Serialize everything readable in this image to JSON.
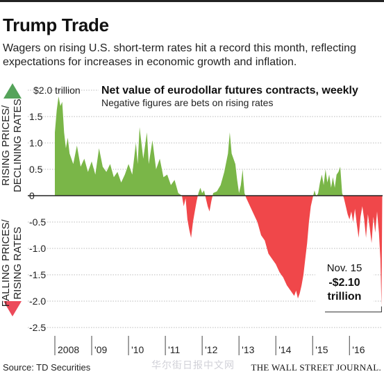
{
  "header": {
    "title": "Trump Trade",
    "subtitle": "Wagers on rising U.S. short-term rates hit a record this month, reflecting expectations for increases in economic growth and inflation."
  },
  "footer": {
    "source": "Source: TD Securities",
    "publisher": "THE WALL STREET JOURNAL.",
    "watermark": "华尔街日报中文网"
  },
  "colors": {
    "positive": "#7ab648",
    "negative": "#f0474a",
    "positive_arrow": "#55a35a",
    "negative_arrow": "#ec4a5a"
  },
  "chart_data": {
    "type": "area",
    "title": "Net value of eurodollar futures contracts, weekly",
    "subtitle": "Negative figures are bets on rising rates",
    "ylabel_positive": "RISING PRICES/ DECLINING RATES",
    "ylabel_negative": "FALLING PRICES/ RISING RATES",
    "ylim": [
      -2.5,
      2.0
    ],
    "y_ticks": [
      {
        "value": 2.0,
        "label": "$2.0 trillion"
      },
      {
        "value": 1.5,
        "label": "1.5"
      },
      {
        "value": 1.0,
        "label": "1.0"
      },
      {
        "value": 0.5,
        "label": "0.5"
      },
      {
        "value": 0,
        "label": "0"
      },
      {
        "value": -0.5,
        "label": "-0.5"
      },
      {
        "value": -1.0,
        "label": "-1.0"
      },
      {
        "value": -1.5,
        "label": "-1.5"
      },
      {
        "value": -2.0,
        "label": "-2.0"
      },
      {
        "value": -2.5,
        "label": "-2.5"
      }
    ],
    "x_range": [
      2008.0,
      2016.9
    ],
    "x_ticks": [
      {
        "value": 2008,
        "label": "2008"
      },
      {
        "value": 2009,
        "label": "'09"
      },
      {
        "value": 2010,
        "label": "'10"
      },
      {
        "value": 2011,
        "label": "'11"
      },
      {
        "value": 2012,
        "label": "'12"
      },
      {
        "value": 2013,
        "label": "'13"
      },
      {
        "value": 2014,
        "label": "'14"
      },
      {
        "value": 2015,
        "label": "'15"
      },
      {
        "value": 2016,
        "label": "'16"
      }
    ],
    "series": [
      {
        "points": [
          [
            2008.0,
            1.2
          ],
          [
            2008.05,
            1.62
          ],
          [
            2008.1,
            1.88
          ],
          [
            2008.15,
            1.7
          ],
          [
            2008.2,
            1.78
          ],
          [
            2008.25,
            1.2
          ],
          [
            2008.3,
            0.9
          ],
          [
            2008.35,
            1.1
          ],
          [
            2008.4,
            0.8
          ],
          [
            2008.5,
            0.6
          ],
          [
            2008.6,
            0.95
          ],
          [
            2008.7,
            0.55
          ],
          [
            2008.8,
            0.7
          ],
          [
            2008.9,
            0.45
          ],
          [
            2009.0,
            0.65
          ],
          [
            2009.1,
            0.4
          ],
          [
            2009.2,
            0.9
          ],
          [
            2009.3,
            0.55
          ],
          [
            2009.4,
            0.45
          ],
          [
            2009.5,
            0.6
          ],
          [
            2009.6,
            0.35
          ],
          [
            2009.7,
            0.45
          ],
          [
            2009.8,
            0.25
          ],
          [
            2009.9,
            0.4
          ],
          [
            2010.0,
            0.6
          ],
          [
            2010.1,
            0.4
          ],
          [
            2010.2,
            1.0
          ],
          [
            2010.25,
            0.6
          ],
          [
            2010.3,
            1.3
          ],
          [
            2010.4,
            0.7
          ],
          [
            2010.5,
            1.2
          ],
          [
            2010.55,
            0.6
          ],
          [
            2010.65,
            1.05
          ],
          [
            2010.75,
            0.5
          ],
          [
            2010.85,
            0.7
          ],
          [
            2010.95,
            0.35
          ],
          [
            2011.05,
            0.4
          ],
          [
            2011.15,
            0.2
          ],
          [
            2011.25,
            0.3
          ],
          [
            2011.35,
            0.05
          ],
          [
            2011.45,
            0.0
          ],
          [
            2011.5,
            -0.2
          ],
          [
            2011.55,
            -0.05
          ],
          [
            2011.6,
            -0.45
          ],
          [
            2011.65,
            -0.65
          ],
          [
            2011.7,
            -0.8
          ],
          [
            2011.75,
            -0.5
          ],
          [
            2011.8,
            -0.3
          ],
          [
            2011.85,
            -0.1
          ],
          [
            2011.9,
            0.05
          ],
          [
            2011.95,
            0.15
          ],
          [
            2012.0,
            0.05
          ],
          [
            2012.05,
            0.1
          ],
          [
            2012.1,
            -0.05
          ],
          [
            2012.15,
            -0.2
          ],
          [
            2012.2,
            -0.3
          ],
          [
            2012.25,
            -0.1
          ],
          [
            2012.3,
            0.05
          ],
          [
            2012.4,
            0.08
          ],
          [
            2012.5,
            0.2
          ],
          [
            2012.6,
            0.45
          ],
          [
            2012.7,
            0.8
          ],
          [
            2012.75,
            1.2
          ],
          [
            2012.8,
            0.8
          ],
          [
            2012.9,
            0.6
          ],
          [
            2012.95,
            0.3
          ],
          [
            2013.0,
            0.05
          ],
          [
            2013.05,
            0.2
          ],
          [
            2013.1,
            0.5
          ],
          [
            2013.12,
            0.3
          ],
          [
            2013.15,
            0.05
          ],
          [
            2013.2,
            -0.05
          ],
          [
            2013.3,
            -0.2
          ],
          [
            2013.4,
            -0.35
          ],
          [
            2013.5,
            -0.5
          ],
          [
            2013.6,
            -0.75
          ],
          [
            2013.7,
            -0.85
          ],
          [
            2013.8,
            -1.1
          ],
          [
            2013.9,
            -1.2
          ],
          [
            2014.0,
            -1.3
          ],
          [
            2014.1,
            -1.45
          ],
          [
            2014.2,
            -1.55
          ],
          [
            2014.3,
            -1.7
          ],
          [
            2014.4,
            -1.8
          ],
          [
            2014.5,
            -1.9
          ],
          [
            2014.55,
            -1.8
          ],
          [
            2014.6,
            -1.95
          ],
          [
            2014.65,
            -1.85
          ],
          [
            2014.7,
            -1.7
          ],
          [
            2014.75,
            -1.5
          ],
          [
            2014.8,
            -1.2
          ],
          [
            2014.85,
            -0.9
          ],
          [
            2014.9,
            -0.5
          ],
          [
            2014.95,
            -0.2
          ],
          [
            2015.0,
            -0.05
          ],
          [
            2015.05,
            0.1
          ],
          [
            2015.1,
            -0.02
          ],
          [
            2015.15,
            0.05
          ],
          [
            2015.2,
            0.25
          ],
          [
            2015.25,
            0.4
          ],
          [
            2015.3,
            0.2
          ],
          [
            2015.35,
            0.5
          ],
          [
            2015.4,
            0.25
          ],
          [
            2015.45,
            0.4
          ],
          [
            2015.5,
            0.15
          ],
          [
            2015.55,
            0.35
          ],
          [
            2015.6,
            0.15
          ],
          [
            2015.65,
            0.4
          ],
          [
            2015.7,
            0.45
          ],
          [
            2015.75,
            0.55
          ],
          [
            2015.8,
            0.05
          ],
          [
            2015.85,
            -0.05
          ],
          [
            2015.9,
            -0.2
          ],
          [
            2015.95,
            -0.35
          ],
          [
            2016.0,
            -0.45
          ],
          [
            2016.05,
            -0.3
          ],
          [
            2016.1,
            -0.5
          ],
          [
            2016.15,
            -0.25
          ],
          [
            2016.2,
            -0.55
          ],
          [
            2016.25,
            -0.8
          ],
          [
            2016.3,
            -0.4
          ],
          [
            2016.35,
            -0.2
          ],
          [
            2016.4,
            -0.45
          ],
          [
            2016.45,
            -0.8
          ],
          [
            2016.5,
            -0.35
          ],
          [
            2016.55,
            -0.6
          ],
          [
            2016.6,
            -0.9
          ],
          [
            2016.65,
            -0.4
          ],
          [
            2016.7,
            -0.7
          ],
          [
            2016.75,
            -0.3
          ],
          [
            2016.8,
            -0.7
          ],
          [
            2016.84,
            -1.2
          ],
          [
            2016.87,
            -2.1
          ],
          [
            2016.89,
            0.0
          ]
        ]
      }
    ],
    "annotation": {
      "x": 2016.87,
      "y": -2.1,
      "line1": "Nov. 15",
      "line2": "-$2.10",
      "line3": "trillion"
    }
  }
}
